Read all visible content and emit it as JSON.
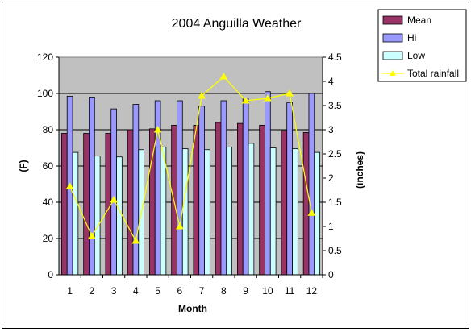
{
  "chart_data": {
    "type": "bar",
    "title": "2004 Anguilla Weather",
    "xlabel": "Month",
    "ylabel": "(F)",
    "y2label": "(inches)",
    "categories": [
      "1",
      "2",
      "3",
      "4",
      "5",
      "6",
      "7",
      "8",
      "9",
      "10",
      "11",
      "12"
    ],
    "ylim": [
      0,
      120
    ],
    "yticks": [
      "0",
      "20",
      "40",
      "60",
      "80",
      "100",
      "120"
    ],
    "y2lim": [
      0,
      4.5
    ],
    "y2ticks": [
      "0",
      "0.5",
      "1",
      "1.5",
      "2",
      "2.5",
      "3",
      "3.5",
      "4",
      "4.5"
    ],
    "plot_background": "#c0c0c0",
    "grid": "horizontal",
    "legend_position": "top-right",
    "series": [
      {
        "name": "Mean",
        "kind": "bar",
        "axis": "left",
        "color": "#993366",
        "values": [
          78,
          78,
          78,
          80,
          80.5,
          82.5,
          82.5,
          84,
          83.5,
          82.5,
          79.5,
          78.5
        ]
      },
      {
        "name": "Hi",
        "kind": "bar",
        "axis": "left",
        "color": "#9999ff",
        "values": [
          98.5,
          98,
          91.5,
          94,
          96,
          96,
          93,
          96,
          97.5,
          101,
          95,
          100
        ]
      },
      {
        "name": "Low",
        "kind": "bar",
        "axis": "left",
        "color": "#ccffff",
        "values": [
          67.5,
          65.5,
          65,
          69,
          70.5,
          69.5,
          69,
          70.5,
          72.5,
          70,
          69.5,
          67.5
        ]
      },
      {
        "name": "Total rainfall",
        "kind": "line",
        "axis": "right",
        "color": "#ffff00",
        "values": [
          1.83,
          0.8,
          1.55,
          0.7,
          3.0,
          1.0,
          3.7,
          4.1,
          3.6,
          3.65,
          3.75,
          1.28
        ]
      }
    ]
  }
}
